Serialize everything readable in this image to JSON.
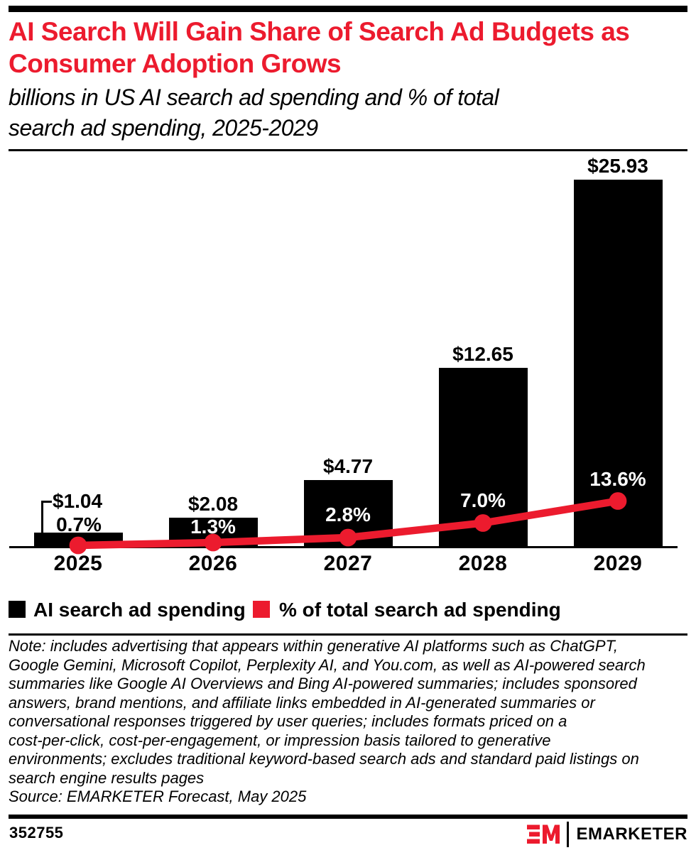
{
  "header": {
    "title": "AI Search Will Gain Share of Search Ad Budgets as\nConsumer Adoption Grows",
    "subtitle": "billions in US AI search ad spending and % of total\nsearch ad spending, 2025-2029"
  },
  "chart_data": {
    "type": "bar",
    "subtype": "bar-line-combo",
    "title": "AI Search Will Gain Share of Search Ad Budgets as Consumer Adoption Grows",
    "subtitle": "billions in US AI search ad spending and % of total search ad spending, 2025-2029",
    "categories": [
      "2025",
      "2026",
      "2027",
      "2028",
      "2029"
    ],
    "series": [
      {
        "name": "AI search ad spending",
        "type": "bar",
        "unit": "billions USD",
        "values": [
          1.04,
          2.08,
          4.77,
          12.65,
          25.93
        ],
        "labels": [
          "$1.04",
          "$2.08",
          "$4.77",
          "$12.65",
          "$25.93"
        ],
        "color": "#000000"
      },
      {
        "name": "% of total search ad spending",
        "type": "line",
        "unit": "%",
        "values": [
          0.7,
          1.3,
          2.8,
          7.0,
          13.6
        ],
        "labels": [
          "0.7%",
          "1.3%",
          "2.8%",
          "7.0%",
          "13.6%"
        ],
        "color": "#EC1B2E"
      }
    ],
    "xlabel": "",
    "ylabel": "",
    "ylim_bars": [
      0,
      27
    ],
    "grid": false,
    "legend_position": "bottom"
  },
  "legend": {
    "items": [
      {
        "label": "AI search ad spending",
        "color": "#000000"
      },
      {
        "label": "% of total search ad spending",
        "color": "#EC1B2E"
      }
    ]
  },
  "note": {
    "text": "Note: includes advertising that appears within generative AI platforms such as ChatGPT,\nGoogle Gemini, Microsoft Copilot, Perplexity AI, and You.com, as well as AI-powered search\nsummaries like Google AI Overviews and Bing AI-powered summaries; includes sponsored\nanswers, brand mentions, and affiliate links embedded in AI-generated summaries or\nconversational responses triggered by user queries; includes formats priced on a\ncost-per-click, cost-per-engagement, or impression basis tailored to generative\nenvironments; excludes traditional keyword-based search ads and standard paid listings on\nsearch engine results pages",
    "source": "Source: EMARKETER Forecast, May 2025"
  },
  "footer": {
    "chart_id": "352755",
    "brand_name": "EMARKETER"
  },
  "colors": {
    "accent_red": "#EC1B2E",
    "bar_black": "#000000",
    "title_red": "#EC1B2E",
    "background": "#FFFFFF"
  }
}
